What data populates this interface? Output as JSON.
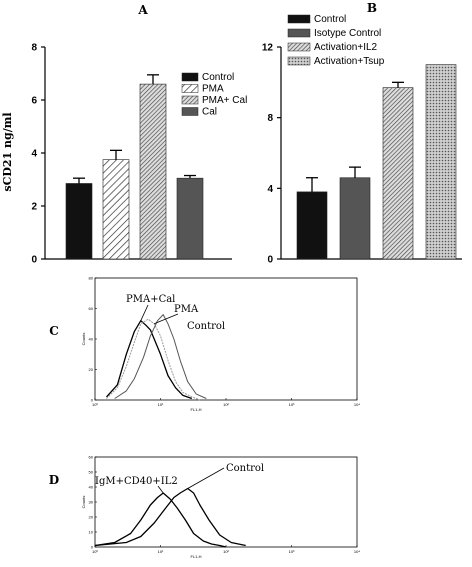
{
  "panels": {
    "A": "A",
    "B": "B",
    "C": "C",
    "D": "D"
  },
  "colors": {
    "black": "#111111",
    "dark_gray": "#555555",
    "hatch": "#444444",
    "trace_dark": "#000000",
    "trace_mid": "#555555",
    "trace_light": "#999999"
  },
  "chart_data": [
    {
      "id": "A",
      "type": "bar",
      "title": "A",
      "ylabel": "sCD21 ng/ml",
      "ylim": [
        0,
        8
      ],
      "yticks": [
        "0",
        "2",
        "4",
        "6",
        "8"
      ],
      "categories": [
        "Control",
        "PMA",
        "PMA+ Cal",
        "Cal"
      ],
      "values": [
        2.85,
        3.75,
        6.6,
        3.05
      ],
      "errors": [
        0.2,
        0.35,
        0.35,
        0.1
      ],
      "legend": [
        "Control",
        "PMA",
        "PMA+ Cal",
        "Cal"
      ],
      "fills": [
        "solid-black",
        "hatch-sparse",
        "hatch-dense",
        "solid-gray"
      ],
      "legend_position": "right"
    },
    {
      "id": "B",
      "type": "bar",
      "title": "B",
      "ylim": [
        0,
        12
      ],
      "yticks": [
        "0",
        "4",
        "8",
        "12"
      ],
      "categories": [
        "Control",
        "Isotype Control",
        "Activation+IL2",
        "Activation+Tsup"
      ],
      "values": [
        3.8,
        4.6,
        9.7,
        11.0
      ],
      "errors": [
        0.8,
        0.6,
        0.3,
        0.0
      ],
      "legend": [
        "Control",
        "Isotype Control",
        "Activation+IL2",
        "Activation+Tsup"
      ],
      "fills": [
        "solid-black",
        "solid-gray",
        "hatch-dense",
        "hatch-cross"
      ],
      "legend_position": "top"
    },
    {
      "id": "C",
      "type": "line",
      "xscale": "log",
      "xlim": [
        1,
        10000
      ],
      "xticks": [
        "10⁰",
        "10¹",
        "10²",
        "10³",
        "10⁴"
      ],
      "xlabel": "FL1-H",
      "ylabel": "Counts",
      "ylim": [
        0,
        80
      ],
      "yticks": [
        "0",
        "20",
        "40",
        "60",
        "80"
      ],
      "annotations": [
        "PMA+Cal",
        "PMA",
        "Control"
      ],
      "series": [
        {
          "name": "PMA+Cal",
          "style": "dark",
          "x": [
            1.5,
            2.2,
            3.0,
            4.0,
            5.0,
            6.0,
            7.0,
            8.0,
            10.0,
            13.0,
            17.0,
            22.0,
            30.0
          ],
          "y": [
            2,
            10,
            30,
            45,
            52,
            49,
            46,
            40,
            30,
            16,
            8,
            3,
            1
          ]
        },
        {
          "name": "PMA",
          "style": "light",
          "x": [
            1.5,
            2.2,
            3.0,
            4.0,
            5.0,
            6.5,
            8.0,
            10.0,
            13.0,
            17.0,
            22.0,
            30.0,
            40.0
          ],
          "y": [
            1,
            8,
            22,
            38,
            50,
            53,
            50,
            42,
            26,
            12,
            5,
            2,
            0
          ]
        },
        {
          "name": "Control",
          "style": "mid",
          "x": [
            2.0,
            3.0,
            4.0,
            5.5,
            7.0,
            9.0,
            11.0,
            13.0,
            16.0,
            20.0,
            26.0,
            35.0,
            50.0
          ],
          "y": [
            1,
            6,
            14,
            28,
            42,
            52,
            56,
            50,
            40,
            26,
            12,
            4,
            1
          ]
        }
      ]
    },
    {
      "id": "D",
      "type": "line",
      "xscale": "log",
      "xlim": [
        1,
        10000
      ],
      "xticks": [
        "10⁰",
        "10¹",
        "10²",
        "10³",
        "10⁴"
      ],
      "xlabel": "FL1-H",
      "ylabel": "Counts",
      "ylim": [
        0,
        60
      ],
      "yticks": [
        "0",
        "10",
        "20",
        "30",
        "40",
        "50",
        "60"
      ],
      "annotations": [
        "IgM+CD40+IL2",
        "Control"
      ],
      "series": [
        {
          "name": "IgM+CD40+IL2",
          "style": "dark",
          "x": [
            1.0,
            2.0,
            3.5,
            5.0,
            7.0,
            9.0,
            11.0,
            14.0,
            18.0,
            24.0,
            32.0,
            45.0,
            60.0,
            80.0,
            100.0
          ],
          "y": [
            1,
            3,
            9,
            18,
            28,
            33,
            36,
            32,
            26,
            18,
            9,
            4,
            2,
            1,
            0
          ]
        },
        {
          "name": "Control",
          "style": "dark",
          "x": [
            1.0,
            3.0,
            5.0,
            8.0,
            12.0,
            16.0,
            20.0,
            26.0,
            32.0,
            40.0,
            55.0,
            80.0,
            120.0,
            200.0
          ],
          "y": [
            1,
            3,
            7,
            16,
            26,
            33,
            36,
            39,
            36,
            28,
            18,
            8,
            3,
            1
          ]
        }
      ]
    }
  ]
}
